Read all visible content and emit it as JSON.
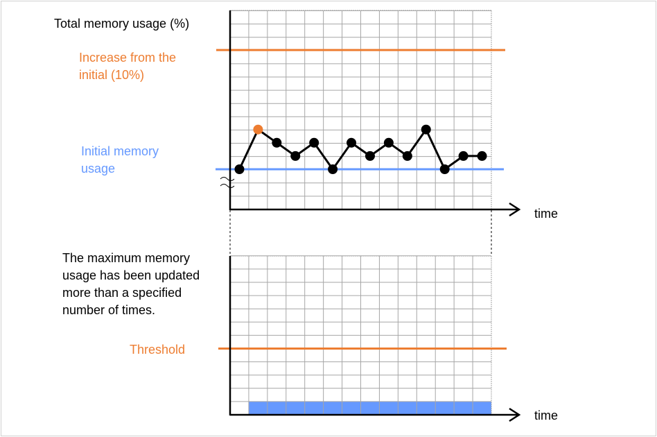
{
  "colors": {
    "accent_orange": "#ED7D31",
    "accent_blue": "#6699FF",
    "grid": "#a6a6a6",
    "line": "#000000"
  },
  "top_chart": {
    "ylabel": "Total memory usage (%)",
    "xlabel": "time",
    "upper_line_label": "Increase from the initial (10%)",
    "baseline_label": "Initial memory usage",
    "axis_break": "≈",
    "series_levels": [
      0,
      3,
      2,
      1,
      2,
      0,
      2,
      1,
      2,
      1,
      3,
      0,
      1,
      1
    ],
    "highlighted_point_index": 1,
    "baseline_level": 0,
    "upper_line_level": 9
  },
  "bottom_chart": {
    "ylabel": "The maximum memory usage has been updated more than a specified number of times.",
    "xlabel": "time",
    "threshold_label": "Threshold",
    "threshold_level": 5,
    "bar_level": 1,
    "bar_start_index": 1
  }
}
